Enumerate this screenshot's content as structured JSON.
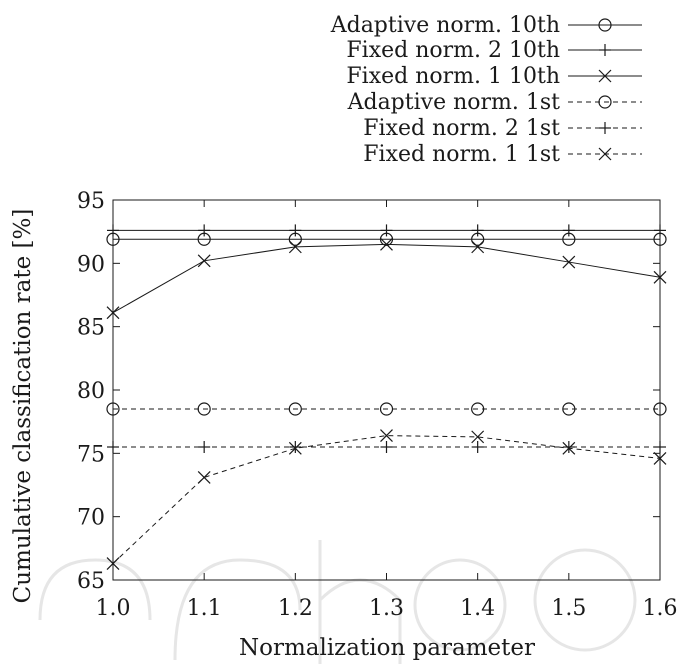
{
  "chart_data": {
    "type": "line",
    "xlabel": "Normalization parameter",
    "ylabel": "Cumulative classification rate [%]",
    "xlim": [
      1.0,
      1.6
    ],
    "ylim": [
      65,
      95
    ],
    "x": [
      1.0,
      1.1,
      1.2,
      1.3,
      1.4,
      1.5,
      1.6
    ],
    "x_tick_labels": [
      "1.0",
      "1.1",
      "1.2",
      "1.3",
      "1.4",
      "1.5",
      "1.6"
    ],
    "y_ticks": [
      65,
      70,
      75,
      80,
      85,
      90,
      95
    ],
    "y_tick_labels": [
      "65",
      "70",
      "75",
      "80",
      "85",
      "90",
      "95"
    ],
    "grid": false,
    "legend_position": "top-right, outside above plot",
    "series": [
      {
        "name": "Adaptive norm. 10th",
        "marker": "circle",
        "dash": "solid",
        "values": [
          91.9,
          91.9,
          91.9,
          91.9,
          91.9,
          91.9,
          91.9
        ]
      },
      {
        "name": "Fixed norm. 2 10th",
        "marker": "plus",
        "dash": "solid",
        "values": [
          92.6,
          92.6,
          92.6,
          92.6,
          92.6,
          92.6,
          92.6
        ]
      },
      {
        "name": "Fixed norm. 1 10th",
        "marker": "cross",
        "dash": "solid",
        "values": [
          86.1,
          90.2,
          91.3,
          91.5,
          91.3,
          90.1,
          88.9
        ]
      },
      {
        "name": "Adaptive norm. 1st",
        "marker": "circle",
        "dash": "dashed",
        "values": [
          78.5,
          78.5,
          78.5,
          78.5,
          78.5,
          78.5,
          78.5
        ]
      },
      {
        "name": "Fixed norm. 2 1st",
        "marker": "plus",
        "dash": "dashed",
        "values": [
          75.5,
          75.5,
          75.5,
          75.5,
          75.5,
          75.5,
          75.5
        ]
      },
      {
        "name": "Fixed norm. 1 1st",
        "marker": "cross",
        "dash": "dashed",
        "values": [
          66.3,
          73.1,
          75.4,
          76.4,
          76.3,
          75.4,
          74.6
        ]
      }
    ],
    "colors": {
      "line": "#1a1a1a",
      "watermark": "#e6e6e6"
    }
  }
}
